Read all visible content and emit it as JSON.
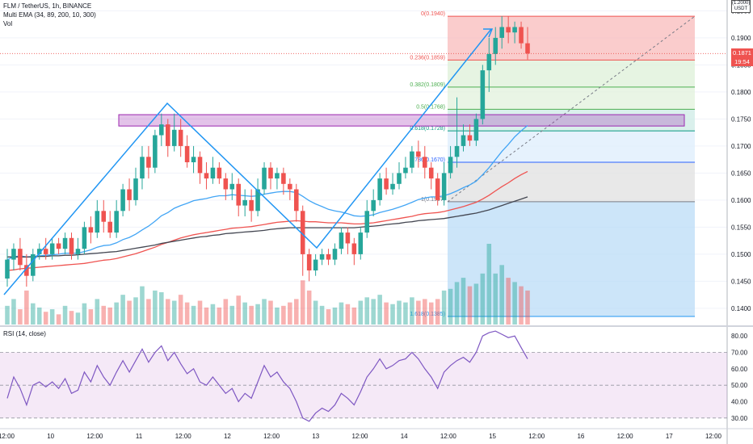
{
  "header": {
    "symbol_line": "FLM / TetherUS, 1h, BINANCE",
    "ema_line": "Multi EMA (34, 89, 200, 10, 300)",
    "vol_line": "Vol",
    "rsi_line": "RSI (14, close)",
    "currency_top": "(1.2000)",
    "currency": "USDT"
  },
  "price_tags": {
    "last_price": "0.1871",
    "countdown": "19:54",
    "last_color": "#ef5350",
    "countdown_color": "#ef5350"
  },
  "chart_data": [
    {
      "type": "candlestick",
      "title": "FLM / TetherUS, 1h, BINANCE",
      "ylim": [
        0.137,
        0.197
      ],
      "y_ticks": [
        "0.1950",
        "0.1900",
        "0.1850",
        "0.1800",
        "0.1750",
        "0.1700",
        "0.1650",
        "0.1600",
        "0.1550",
        "0.1500",
        "0.1450",
        "0.1400"
      ],
      "x_ticks": [
        "12:00",
        "10",
        "12:00",
        "11",
        "12:00",
        "12",
        "12:00",
        "13",
        "12:00",
        "14",
        "12:00",
        "15",
        "12:00",
        "16",
        "12:00",
        "17",
        "12:00"
      ],
      "candles": [
        [
          0.1455,
          0.149,
          0.144,
          0.151
        ],
        [
          0.149,
          0.151,
          0.147,
          0.152
        ],
        [
          0.151,
          0.148,
          0.147,
          0.153
        ],
        [
          0.148,
          0.146,
          0.144,
          0.15
        ],
        [
          0.146,
          0.15,
          0.145,
          0.151
        ],
        [
          0.15,
          0.151,
          0.149,
          0.152
        ],
        [
          0.151,
          0.15,
          0.149,
          0.153
        ],
        [
          0.15,
          0.152,
          0.149,
          0.153
        ],
        [
          0.152,
          0.151,
          0.15,
          0.153
        ],
        [
          0.151,
          0.153,
          0.15,
          0.154
        ],
        [
          0.153,
          0.15,
          0.149,
          0.154
        ],
        [
          0.15,
          0.151,
          0.149,
          0.153
        ],
        [
          0.151,
          0.155,
          0.15,
          0.156
        ],
        [
          0.155,
          0.154,
          0.152,
          0.157
        ],
        [
          0.154,
          0.158,
          0.153,
          0.16
        ],
        [
          0.158,
          0.156,
          0.154,
          0.16
        ],
        [
          0.156,
          0.154,
          0.153,
          0.158
        ],
        [
          0.154,
          0.158,
          0.153,
          0.16
        ],
        [
          0.158,
          0.162,
          0.157,
          0.163
        ],
        [
          0.162,
          0.16,
          0.158,
          0.164
        ],
        [
          0.16,
          0.164,
          0.159,
          0.166
        ],
        [
          0.164,
          0.168,
          0.162,
          0.17
        ],
        [
          0.168,
          0.166,
          0.164,
          0.17
        ],
        [
          0.166,
          0.172,
          0.165,
          0.173
        ],
        [
          0.172,
          0.174,
          0.17,
          0.176
        ],
        [
          0.174,
          0.17,
          0.168,
          0.175
        ],
        [
          0.17,
          0.173,
          0.169,
          0.176
        ],
        [
          0.173,
          0.17,
          0.168,
          0.175
        ],
        [
          0.17,
          0.167,
          0.166,
          0.172
        ],
        [
          0.167,
          0.168,
          0.165,
          0.17
        ],
        [
          0.168,
          0.165,
          0.163,
          0.169
        ],
        [
          0.165,
          0.164,
          0.162,
          0.167
        ],
        [
          0.164,
          0.166,
          0.163,
          0.168
        ],
        [
          0.166,
          0.164,
          0.163,
          0.167
        ],
        [
          0.164,
          0.162,
          0.16,
          0.165
        ],
        [
          0.162,
          0.163,
          0.16,
          0.165
        ],
        [
          0.163,
          0.159,
          0.157,
          0.164
        ],
        [
          0.159,
          0.16,
          0.157,
          0.162
        ],
        [
          0.16,
          0.158,
          0.156,
          0.162
        ],
        [
          0.158,
          0.162,
          0.157,
          0.164
        ],
        [
          0.162,
          0.166,
          0.161,
          0.167
        ],
        [
          0.166,
          0.164,
          0.162,
          0.167
        ],
        [
          0.164,
          0.165,
          0.162,
          0.166
        ],
        [
          0.165,
          0.163,
          0.161,
          0.166
        ],
        [
          0.163,
          0.162,
          0.16,
          0.164
        ],
        [
          0.162,
          0.158,
          0.156,
          0.163
        ],
        [
          0.158,
          0.15,
          0.146,
          0.159
        ],
        [
          0.15,
          0.147,
          0.145,
          0.151
        ],
        [
          0.147,
          0.149,
          0.146,
          0.15
        ],
        [
          0.149,
          0.15,
          0.148,
          0.151
        ],
        [
          0.15,
          0.149,
          0.148,
          0.151
        ],
        [
          0.149,
          0.151,
          0.148,
          0.152
        ],
        [
          0.151,
          0.154,
          0.15,
          0.155
        ],
        [
          0.154,
          0.152,
          0.15,
          0.155
        ],
        [
          0.152,
          0.15,
          0.148,
          0.153
        ],
        [
          0.15,
          0.154,
          0.149,
          0.155
        ],
        [
          0.154,
          0.158,
          0.153,
          0.16
        ],
        [
          0.158,
          0.16,
          0.157,
          0.162
        ],
        [
          0.16,
          0.164,
          0.159,
          0.165
        ],
        [
          0.164,
          0.162,
          0.161,
          0.166
        ],
        [
          0.162,
          0.163,
          0.161,
          0.165
        ],
        [
          0.163,
          0.165,
          0.162,
          0.167
        ],
        [
          0.165,
          0.166,
          0.164,
          0.168
        ],
        [
          0.166,
          0.169,
          0.165,
          0.17
        ],
        [
          0.169,
          0.168,
          0.166,
          0.171
        ],
        [
          0.168,
          0.166,
          0.164,
          0.17
        ],
        [
          0.166,
          0.164,
          0.162,
          0.167
        ],
        [
          0.164,
          0.16,
          0.159,
          0.165
        ],
        [
          0.16,
          0.165,
          0.159,
          0.167
        ],
        [
          0.165,
          0.168,
          0.164,
          0.17
        ],
        [
          0.168,
          0.17,
          0.166,
          0.179
        ],
        [
          0.17,
          0.172,
          0.169,
          0.174
        ],
        [
          0.172,
          0.171,
          0.17,
          0.174
        ],
        [
          0.171,
          0.175,
          0.17,
          0.176
        ],
        [
          0.175,
          0.184,
          0.174,
          0.185
        ],
        [
          0.184,
          0.187,
          0.18,
          0.19
        ],
        [
          0.187,
          0.19,
          0.185,
          0.192
        ],
        [
          0.19,
          0.192,
          0.188,
          0.194
        ],
        [
          0.192,
          0.191,
          0.189,
          0.194
        ],
        [
          0.191,
          0.192,
          0.189,
          0.193
        ],
        [
          0.192,
          0.189,
          0.188,
          0.193
        ],
        [
          0.189,
          0.1871,
          0.186,
          0.192
        ]
      ],
      "series": [
        {
          "name": "EMA 34",
          "color": "#42a5f5",
          "values": [
            0.149,
            0.1495,
            0.1497,
            0.1495,
            0.1496,
            0.1497,
            0.1498,
            0.1499,
            0.15,
            0.1502,
            0.1502,
            0.1502,
            0.1505,
            0.1508,
            0.1513,
            0.1516,
            0.1517,
            0.1521,
            0.1527,
            0.1531,
            0.1537,
            0.1545,
            0.1552,
            0.1561,
            0.1571,
            0.1577,
            0.1585,
            0.159,
            0.1594,
            0.1599,
            0.1601,
            0.1603,
            0.1606,
            0.1608,
            0.1608,
            0.161,
            0.1609,
            0.1608,
            0.1607,
            0.1608,
            0.1611,
            0.1613,
            0.1615,
            0.1616,
            0.1616,
            0.1614,
            0.1607,
            0.1599,
            0.1593,
            0.1588,
            0.1583,
            0.158,
            0.1578,
            0.1575,
            0.1571,
            0.157,
            0.1571,
            0.1573,
            0.1577,
            0.158,
            0.1583,
            0.1587,
            0.1591,
            0.1596,
            0.1601,
            0.1604,
            0.1606,
            0.1606,
            0.1608,
            0.1612,
            0.1617,
            0.1623,
            0.1628,
            0.1635,
            0.1647,
            0.166,
            0.1675,
            0.169,
            0.1703,
            0.1717,
            0.1728,
            0.1738
          ]
        },
        {
          "name": "EMA 89",
          "color": "#ef5350",
          "values": [
            0.147,
            0.1471,
            0.1473,
            0.1474,
            0.1475,
            0.1476,
            0.1477,
            0.1478,
            0.1479,
            0.148,
            0.1481,
            0.1482,
            0.1483,
            0.1485,
            0.1487,
            0.1489,
            0.149,
            0.1492,
            0.1495,
            0.1498,
            0.1501,
            0.1505,
            0.1509,
            0.1513,
            0.1518,
            0.1522,
            0.1526,
            0.153,
            0.1533,
            0.1536,
            0.1538,
            0.154,
            0.1542,
            0.1544,
            0.1546,
            0.1548,
            0.1549,
            0.155,
            0.1551,
            0.1553,
            0.1555,
            0.1557,
            0.1559,
            0.156,
            0.1561,
            0.1562,
            0.1561,
            0.156,
            0.156,
            0.1559,
            0.1558,
            0.1558,
            0.1558,
            0.1557,
            0.1556,
            0.1556,
            0.1557,
            0.1558,
            0.156,
            0.1562,
            0.1564,
            0.1566,
            0.1568,
            0.157,
            0.1573,
            0.1575,
            0.1576,
            0.1577,
            0.1579,
            0.1582,
            0.1585,
            0.1588,
            0.1592,
            0.1596,
            0.1602,
            0.1609,
            0.1617,
            0.1625,
            0.1632,
            0.164,
            0.1647,
            0.1653
          ]
        },
        {
          "name": "EMA 200",
          "color": "#434651",
          "values": [
            0.1495,
            0.1495,
            0.1495,
            0.1495,
            0.1495,
            0.1496,
            0.1496,
            0.1497,
            0.1497,
            0.1498,
            0.1498,
            0.1499,
            0.15,
            0.1501,
            0.1502,
            0.1503,
            0.1504,
            0.1505,
            0.1507,
            0.1509,
            0.1511,
            0.1513,
            0.1515,
            0.1517,
            0.152,
            0.1522,
            0.1524,
            0.1526,
            0.1528,
            0.153,
            0.1532,
            0.1533,
            0.1535,
            0.1536,
            0.1538,
            0.1539,
            0.154,
            0.1541,
            0.1542,
            0.1543,
            0.1544,
            0.1546,
            0.1547,
            0.1548,
            0.1549,
            0.1549,
            0.1549,
            0.1549,
            0.1549,
            0.1549,
            0.1549,
            0.1549,
            0.1549,
            0.1549,
            0.1549,
            0.155,
            0.1551,
            0.1552,
            0.1553,
            0.1555,
            0.1556,
            0.1557,
            0.1559,
            0.156,
            0.1562,
            0.1563,
            0.1564,
            0.1565,
            0.1566,
            0.1568,
            0.157,
            0.1572,
            0.1574,
            0.1576,
            0.1579,
            0.1582,
            0.1586,
            0.159,
            0.1594,
            0.1598,
            0.1602,
            0.1606
          ]
        }
      ],
      "volumes": [
        22,
        30,
        18,
        40,
        25,
        20,
        15,
        18,
        12,
        22,
        16,
        14,
        25,
        18,
        30,
        22,
        20,
        26,
        35,
        28,
        32,
        45,
        30,
        40,
        38,
        30,
        28,
        35,
        26,
        22,
        28,
        20,
        24,
        20,
        30,
        22,
        34,
        26,
        22,
        24,
        30,
        28,
        20,
        22,
        26,
        30,
        52,
        40,
        28,
        22,
        18,
        20,
        26,
        24,
        20,
        28,
        32,
        30,
        35,
        26,
        24,
        28,
        26,
        32,
        28,
        30,
        26,
        30,
        40,
        42,
        50,
        55,
        45,
        48,
        60,
        95,
        60,
        70,
        55,
        50,
        45,
        40
      ],
      "fibonacci": [
        {
          "label": "0(0.1940)",
          "level": 0.194,
          "color": "#ef5350"
        },
        {
          "label": "0.236(0.1859)",
          "level": 0.1859,
          "color": "#ef5350"
        },
        {
          "label": "0.382(0.1809)",
          "level": 0.1809,
          "color": "#4caf50"
        },
        {
          "label": "0.5(0.1768)",
          "level": 0.1768,
          "color": "#4caf50"
        },
        {
          "label": "0.618(0.1728)",
          "level": 0.1728,
          "color": "#089981"
        },
        {
          "label": "0.786(0.1670)",
          "level": 0.167,
          "color": "#2962ff"
        },
        {
          "label": "1(0.1597)",
          "level": 0.1597,
          "color": "#787b86"
        },
        {
          "label": "1.618(0.1385)",
          "level": 0.1385,
          "color": "#2196f3"
        }
      ],
      "zone": {
        "from": 0.1737,
        "to": 0.1758,
        "color": "#9c27b0"
      }
    },
    {
      "type": "line",
      "title": "RSI (14, close)",
      "ylim": [
        25,
        85
      ],
      "y_ticks": [
        "80.00",
        "70.00",
        "60.00",
        "50.00",
        "40.00",
        "30.00"
      ],
      "band": [
        30,
        70
      ],
      "values": [
        42,
        55,
        48,
        38,
        50,
        52,
        49,
        52,
        48,
        54,
        45,
        47,
        58,
        52,
        62,
        55,
        50,
        58,
        65,
        58,
        65,
        72,
        64,
        70,
        74,
        65,
        70,
        63,
        57,
        60,
        52,
        50,
        55,
        50,
        45,
        48,
        40,
        45,
        42,
        52,
        62,
        55,
        58,
        52,
        48,
        40,
        30,
        28,
        33,
        36,
        34,
        38,
        45,
        42,
        38,
        46,
        55,
        60,
        66,
        60,
        62,
        65,
        66,
        70,
        66,
        60,
        55,
        48,
        58,
        62,
        65,
        67,
        64,
        70,
        80,
        82,
        83,
        81,
        79,
        80,
        73,
        66
      ]
    }
  ]
}
